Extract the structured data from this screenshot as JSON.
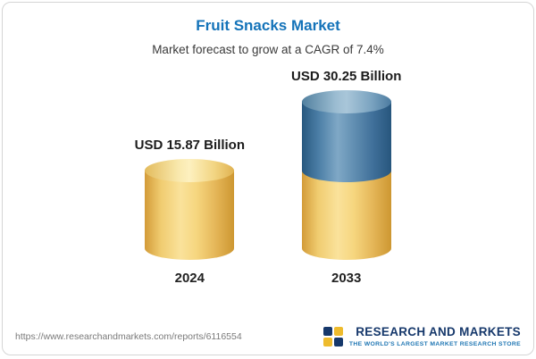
{
  "card": {
    "title": "Fruit Snacks Market",
    "subtitle": "Market forecast to grow at a CAGR of 7.4%"
  },
  "footer": {
    "url": "https://www.researchandmarkets.com/reports/6116554",
    "logo_name": "RESEARCH AND MARKETS",
    "logo_tagline": "THE WORLD'S LARGEST MARKET RESEARCH STORE"
  },
  "chart_data": {
    "type": "bar",
    "title": "Fruit Snacks Market",
    "subtitle": "Market forecast to grow at a CAGR of 7.4%",
    "cagr_percent": 7.4,
    "unit": "USD Billion",
    "categories": [
      "2024",
      "2033"
    ],
    "values": [
      15.87,
      30.25
    ],
    "value_labels": [
      "USD 15.87 Billion",
      "USD 30.25 Billion"
    ],
    "stacking": "2033 bar shows 2024 base (gold) plus growth portion (blue)",
    "colors": {
      "base_bar": "#F2CE68",
      "growth_bar": "#4E81A8",
      "title_text": "#1473B9"
    },
    "legend": "none",
    "grid": false
  }
}
